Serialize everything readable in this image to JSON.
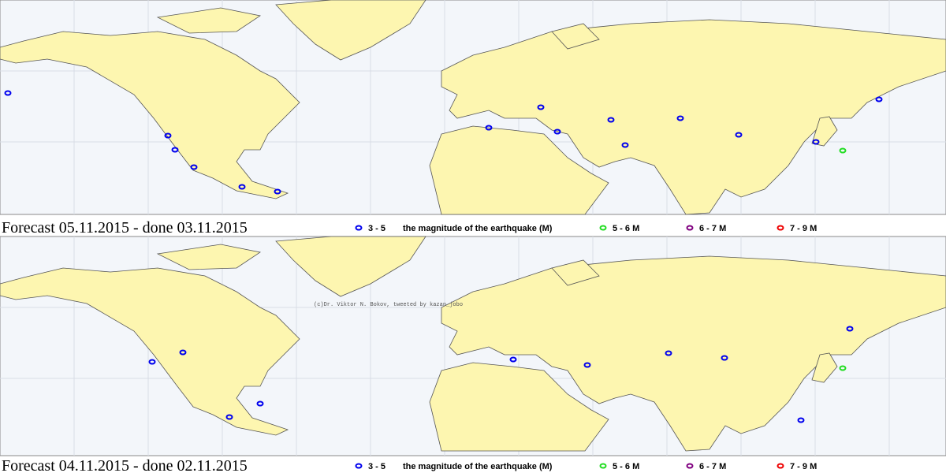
{
  "panels": [
    {
      "title": "Forecast  05.11.2015 -  done 03.11.2015",
      "legend": [
        {
          "range": "3 - 5",
          "label": "the magnitude of the earthquake (M)"
        },
        {
          "range": "5 - 6 M"
        },
        {
          "range": "6 - 7 M"
        },
        {
          "range": "7 - 9 M"
        }
      ]
    },
    {
      "title": "Forecast  04.11.2015 -  done 02.11.2015",
      "legend": [
        {
          "range": "3 - 5",
          "label": "the magnitude of the earthquake (M)"
        },
        {
          "range": "5 - 6 M"
        },
        {
          "range": "6 - 7 M"
        },
        {
          "range": "7 - 9 M"
        }
      ]
    }
  ],
  "watermark": "(c)Dr. Viktor N. Bokov, tweeted by kazan_jobo"
}
